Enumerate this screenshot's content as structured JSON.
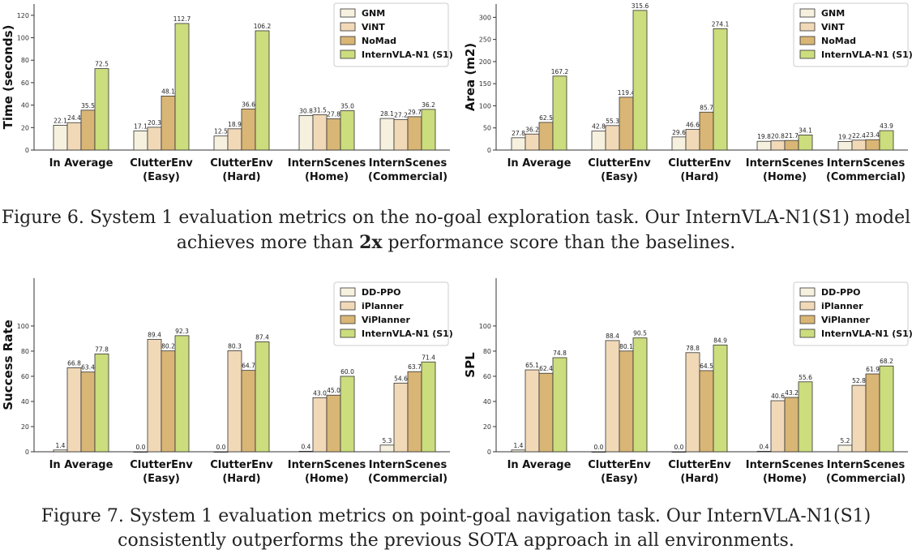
{
  "colors": {
    "series": [
      "#f6f1de",
      "#f1d9b8",
      "#d9b676",
      "#cbdd7d"
    ],
    "axis": "#333333",
    "stroke": "#333333"
  },
  "captions": {
    "fig6_prefix": "Figure 6. System 1 evaluation metrics on the no-goal exploration task. Our InternVLA-N1(S1) model",
    "fig6_pre": "achieves more than ",
    "fig6_bold": "2x",
    "fig6_post": " performance score than the baselines.",
    "fig7_line1": "Figure 7. System 1 evaluation metrics on point-goal navigation task. Our InternVLA-N1(S1)",
    "fig7_line2": "consistently outperforms the previous SOTA approach in all environments."
  },
  "chart_data": [
    {
      "type": "bar",
      "ylabel": "Time (seconds)",
      "ylim": [
        0,
        130
      ],
      "yticks": [
        0,
        20,
        40,
        60,
        80,
        100,
        120
      ],
      "categories": [
        [
          "In Average"
        ],
        [
          "ClutterEnv",
          "(Easy)"
        ],
        [
          "ClutterEnv",
          "(Hard)"
        ],
        [
          "InternScenes",
          "(Home)"
        ],
        [
          "InternScenes",
          "(Commercial)"
        ]
      ],
      "legend_position": "top-right",
      "series": [
        {
          "name": "GNM",
          "values": [
            22.1,
            17.1,
            12.5,
            30.8,
            28.1
          ]
        },
        {
          "name": "ViNT",
          "values": [
            24.4,
            20.3,
            18.9,
            31.5,
            27.2
          ]
        },
        {
          "name": "NoMad",
          "values": [
            35.5,
            48.1,
            36.6,
            27.8,
            29.7
          ]
        },
        {
          "name": "InternVLA-N1 (S1)",
          "values": [
            72.5,
            112.7,
            106.2,
            35.0,
            36.2
          ]
        }
      ]
    },
    {
      "type": "bar",
      "ylabel": "Area (m2)",
      "ylim": [
        0,
        330
      ],
      "yticks": [
        0,
        50,
        100,
        150,
        200,
        250,
        300
      ],
      "categories": [
        [
          "In Average"
        ],
        [
          "ClutterEnv",
          "(Easy)"
        ],
        [
          "ClutterEnv",
          "(Hard)"
        ],
        [
          "InternScenes",
          "(Home)"
        ],
        [
          "InternScenes",
          "(Commercial)"
        ]
      ],
      "legend_position": "top-right",
      "series": [
        {
          "name": "GNM",
          "values": [
            27.8,
            42.8,
            29.6,
            19.8,
            19.2
          ]
        },
        {
          "name": "ViNT",
          "values": [
            36.2,
            55.3,
            46.6,
            20.8,
            22.4
          ]
        },
        {
          "name": "NoMad",
          "values": [
            62.5,
            119.4,
            85.7,
            21.7,
            23.4
          ]
        },
        {
          "name": "InternVLA-N1 (S1)",
          "values": [
            167.2,
            315.6,
            274.1,
            34.1,
            43.9
          ]
        }
      ]
    },
    {
      "type": "bar",
      "ylabel": "Success Rate",
      "ylim": [
        0,
        138
      ],
      "yticks": [
        0,
        20,
        40,
        60,
        80,
        100
      ],
      "categories": [
        [
          "In Average"
        ],
        [
          "ClutterEnv",
          "(Easy)"
        ],
        [
          "ClutterEnv",
          "(Hard)"
        ],
        [
          "InternScenes",
          "(Home)"
        ],
        [
          "InternScenes",
          "(Commercial)"
        ]
      ],
      "legend_position": "top-right",
      "series": [
        {
          "name": "DD-PPO",
          "values": [
            1.4,
            0.0,
            0.0,
            0.4,
            5.3
          ]
        },
        {
          "name": "iPlanner",
          "values": [
            66.8,
            89.4,
            80.3,
            43.0,
            54.6
          ]
        },
        {
          "name": "ViPlanner",
          "values": [
            63.4,
            80.2,
            64.7,
            45.0,
            63.7
          ]
        },
        {
          "name": "InternVLA-N1 (S1)",
          "values": [
            77.8,
            92.3,
            87.4,
            60.0,
            71.4
          ]
        }
      ]
    },
    {
      "type": "bar",
      "ylabel": "SPL",
      "ylim": [
        0,
        138
      ],
      "yticks": [
        0,
        20,
        40,
        60,
        80,
        100
      ],
      "categories": [
        [
          "In Average"
        ],
        [
          "ClutterEnv",
          "(Easy)"
        ],
        [
          "ClutterEnv",
          "(Hard)"
        ],
        [
          "InternScenes",
          "(Home)"
        ],
        [
          "InternScenes",
          "(Commercial)"
        ]
      ],
      "legend_position": "top-right",
      "series": [
        {
          "name": "DD-PPO",
          "values": [
            1.4,
            0.0,
            0.0,
            0.4,
            5.2
          ]
        },
        {
          "name": "iPlanner",
          "values": [
            65.1,
            88.4,
            78.8,
            40.6,
            52.8
          ]
        },
        {
          "name": "ViPlanner",
          "values": [
            62.4,
            80.1,
            64.5,
            43.2,
            61.9
          ]
        },
        {
          "name": "InternVLA-N1 (S1)",
          "values": [
            74.8,
            90.5,
            84.9,
            55.6,
            68.2
          ]
        }
      ]
    }
  ]
}
